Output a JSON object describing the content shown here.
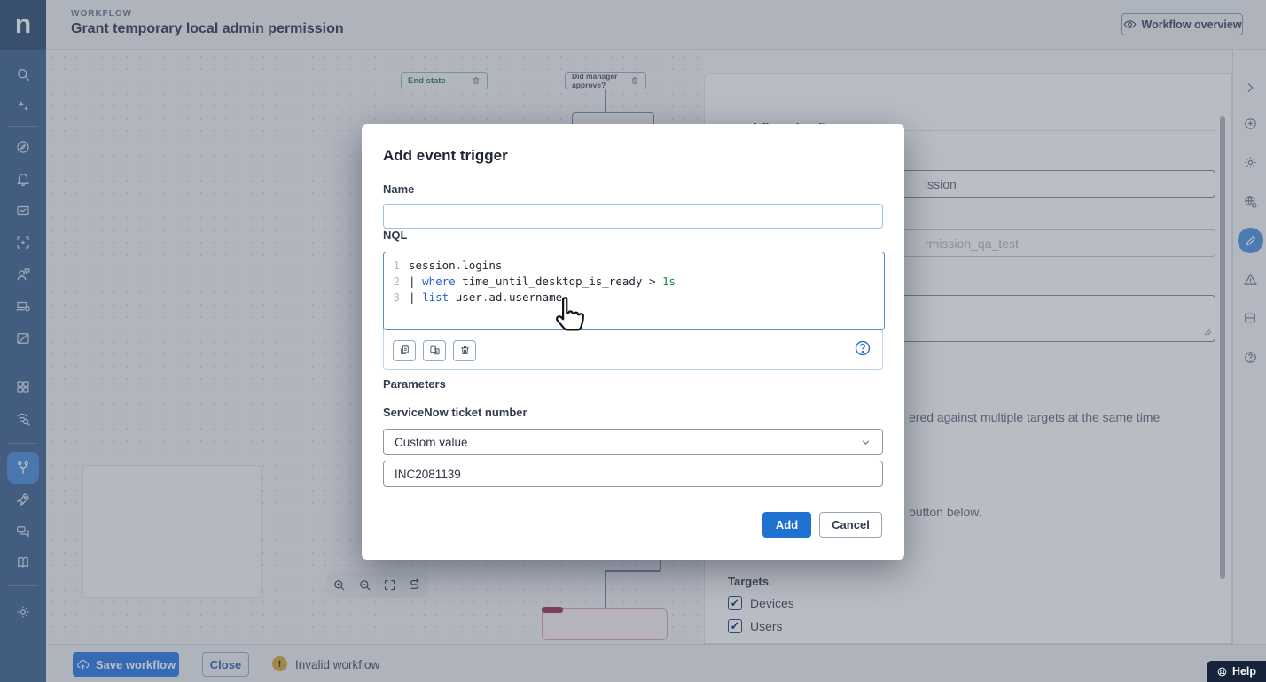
{
  "header": {
    "logo": "n",
    "eyebrow": "WORKFLOW",
    "title": "Grant temporary local admin permission",
    "overview_button": "Workflow overview"
  },
  "sidebar": {
    "icons": [
      "search-ai",
      "sparkles",
      "compass",
      "bell",
      "dashboard",
      "ai-box",
      "user-chat",
      "device-gear",
      "window",
      "grid",
      "fingerprint-search",
      "workflows",
      "rocket",
      "chat",
      "book",
      "settings"
    ],
    "active_icon": "workflows"
  },
  "canvas": {
    "end_state_label": "End state",
    "decision_label": "Did manager approve?",
    "zoom_toolbar_icons": [
      "zoom-in",
      "zoom-out",
      "fit-view",
      "reroute"
    ]
  },
  "right_panel": {
    "heading": "Workflow details",
    "name_fragment": "ission",
    "id_fragment": "rmission_qa_test",
    "info_fragment_1": "ered against multiple targets at the same time",
    "info_fragment_2": "button below.",
    "targets_heading": "Targets",
    "checkboxes": [
      {
        "label": "Devices",
        "checked": true
      },
      {
        "label": "Users",
        "checked": true
      }
    ]
  },
  "right_toolbar": {
    "icons": [
      "collapse-panel",
      "add-circle",
      "settings",
      "globe-settings",
      "edit",
      "warning",
      "layout",
      "help-circle"
    ],
    "active_icon": "edit"
  },
  "bottom_bar": {
    "save_label": "Save workflow",
    "close_label": "Close",
    "status_icon": "warning-circle",
    "status_text": "Invalid workflow"
  },
  "help": {
    "label": "Help"
  },
  "modal": {
    "title": "Add event trigger",
    "name_label": "Name",
    "name_value": "",
    "nql_label": "NQL",
    "nql": {
      "lines": [
        {
          "num": "1",
          "tokens": [
            [
              "session",
              "p"
            ],
            [
              ".",
              "d"
            ],
            [
              "logins",
              "p"
            ]
          ]
        },
        {
          "num": "2",
          "tokens": [
            [
              "| ",
              "p"
            ],
            [
              "where",
              "k"
            ],
            [
              " time_until_desktop_is_ready > ",
              "p"
            ],
            [
              "1s",
              "n"
            ]
          ]
        },
        {
          "num": "3",
          "tokens": [
            [
              "| ",
              "p"
            ],
            [
              "list",
              "k"
            ],
            [
              " user",
              "p"
            ],
            [
              ".",
              "d"
            ],
            [
              "ad",
              "p"
            ],
            [
              ".",
              "d"
            ],
            [
              "username",
              "p"
            ]
          ]
        }
      ]
    },
    "toolbar_icons": [
      "copy",
      "duplicate",
      "delete",
      "help"
    ],
    "parameters_label": "Parameters",
    "param_label": "ServiceNow ticket number",
    "select_value": "Custom value",
    "param_value": "INC2081139",
    "add_label": "Add",
    "cancel_label": "Cancel"
  },
  "colors": {
    "accent_blue": "#1f72d2",
    "sidebar_blue": "#53759f",
    "active_item_blue": "#5e9be0",
    "keyword_blue": "#2563c9",
    "literal_green": "#1e8449",
    "dot_red": "#c0392b",
    "warning_amber": "#d8b255",
    "error_pink": "#a64a70"
  }
}
